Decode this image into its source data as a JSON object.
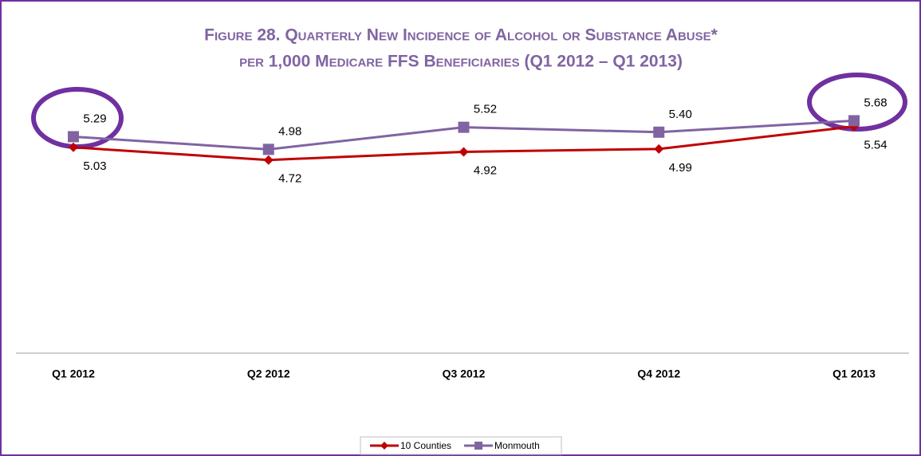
{
  "chart_data": {
    "type": "line",
    "title": [
      "Figure 28. Quarterly New Incidence of  Alcohol or Substance Abuse*",
      "per 1,000 Medicare FFS Beneficiaries (Q1 2012 – Q1 2013)"
    ],
    "categories": [
      "Q1 2012",
      "Q2 2012",
      "Q3 2012",
      "Q4 2012",
      "Q1 2013"
    ],
    "series": [
      {
        "name": "10 Counties",
        "color": "#c00000",
        "marker": "diamond",
        "values": [
          5.03,
          4.72,
          4.92,
          4.99,
          5.54
        ],
        "value_labels": [
          "5.03",
          "4.72",
          "4.92",
          "4.99",
          "5.54"
        ]
      },
      {
        "name": "Monmouth",
        "color": "#8064a2",
        "marker": "square",
        "values": [
          5.29,
          4.98,
          5.52,
          5.4,
          5.68
        ],
        "value_labels": [
          "5.29",
          "4.98",
          "5.52",
          "5.40",
          "5.68"
        ]
      }
    ],
    "ylim": [
      0,
      6
    ],
    "legend": "bottom"
  }
}
